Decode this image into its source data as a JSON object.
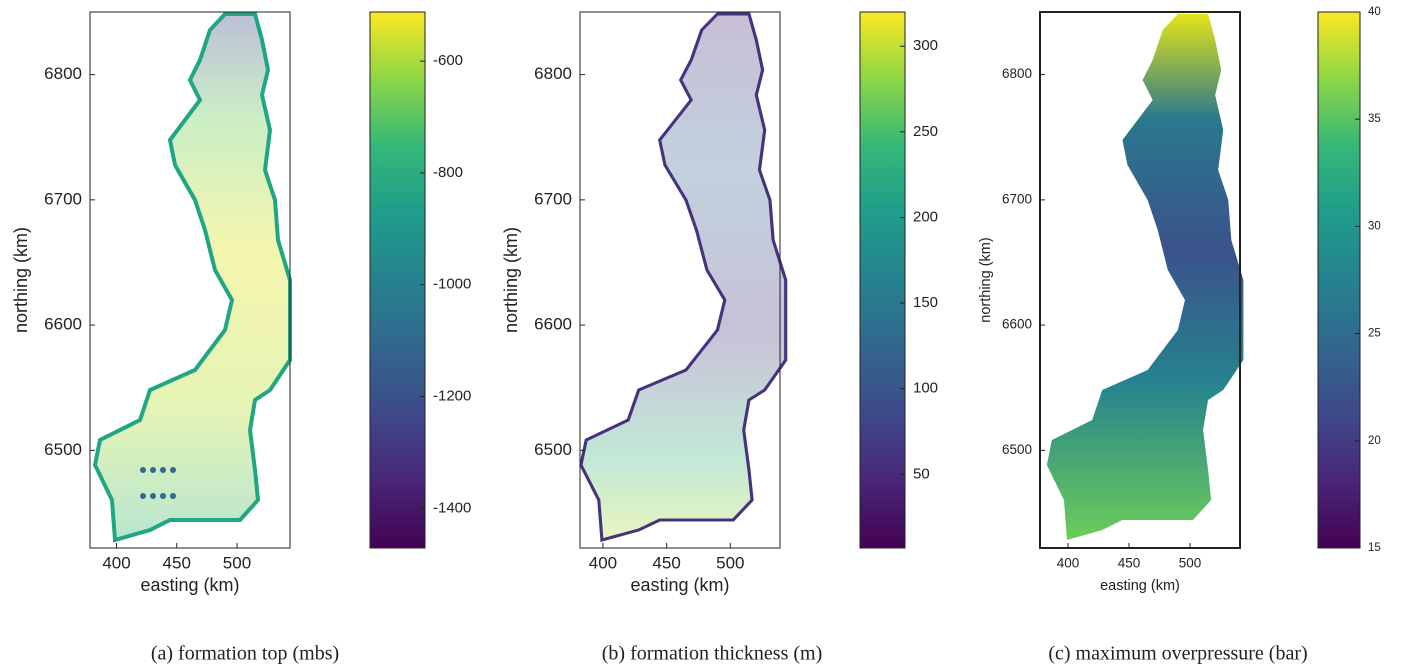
{
  "chart_data": [
    {
      "type": "map",
      "caption": "(a)  formation top (mbs)",
      "x_label": "easting (km)",
      "y_label": "northing (km)",
      "xlim": [
        378,
        544
      ],
      "ylim": [
        6422,
        6850
      ],
      "xticks": [
        400,
        450,
        500
      ],
      "yticks": [
        6500,
        6600,
        6700,
        6800
      ],
      "colorbar": {
        "colormap": "viridis",
        "clim": [
          -1471,
          -512
        ],
        "ticks": [
          -1400,
          -1200,
          -1000,
          -800,
          -600
        ]
      }
    },
    {
      "type": "map",
      "caption": "(b)  formation thickness (m)",
      "x_label": "easting (km)",
      "y_label": "northing (km)",
      "xlim": [
        382,
        539
      ],
      "ylim": [
        6422,
        6850
      ],
      "xticks": [
        400,
        450,
        500
      ],
      "yticks": [
        6500,
        6600,
        6700,
        6800
      ],
      "colorbar": {
        "colormap": "viridis",
        "clim": [
          7,
          320
        ],
        "ticks": [
          50,
          100,
          150,
          200,
          250,
          300
        ]
      }
    },
    {
      "type": "map",
      "caption": "(c)  maximum overpressure (bar)",
      "x_label": "easting (km)",
      "y_label": "northing (km)",
      "xlim": [
        377,
        541
      ],
      "ylim": [
        6422,
        6850
      ],
      "xticks": [
        400,
        450,
        500
      ],
      "yticks": [
        6500,
        6600,
        6700,
        6800
      ],
      "colorbar": {
        "colormap": "viridis",
        "clim": [
          15,
          40
        ],
        "ticks": [
          15,
          20,
          25,
          30,
          35,
          40
        ]
      }
    }
  ]
}
